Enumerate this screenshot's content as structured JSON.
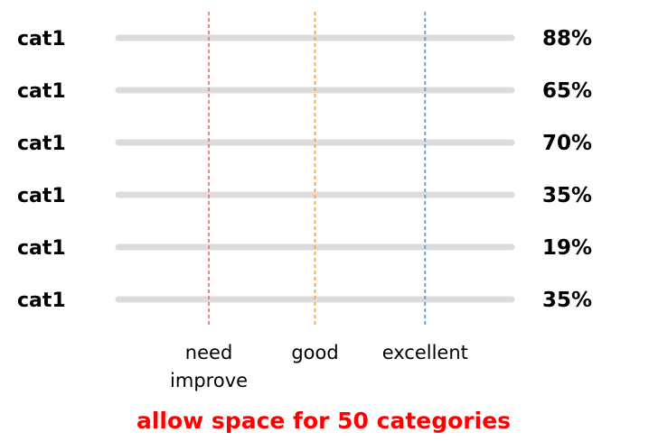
{
  "chart_data": {
    "type": "bar",
    "orientation": "horizontal",
    "categories": [
      "cat1",
      "cat1",
      "cat1",
      "cat1",
      "cat1",
      "cat1"
    ],
    "values": [
      88,
      65,
      70,
      35,
      19,
      35
    ],
    "value_labels": [
      "88%",
      "65%",
      "70%",
      "35%",
      "19%",
      "35%"
    ],
    "bar_colors": [
      "#6699cc",
      "#6699cc",
      "#6699cc",
      "#ffa04d",
      "#f07878",
      "#ffa04d"
    ],
    "track_color": "#dcdcdc",
    "xlim": [
      0,
      100
    ],
    "thresholds": [
      {
        "value": 23,
        "label_lines": [
          "need",
          "improve"
        ],
        "color": "#f07878"
      },
      {
        "value": 50,
        "label_lines": [
          "good"
        ],
        "color": "#ffa04d"
      },
      {
        "value": 78,
        "label_lines": [
          "excellent"
        ],
        "color": "#5aa0d8"
      }
    ],
    "grid": false,
    "legend": "none"
  },
  "footer_note": "allow space for 50 categories"
}
